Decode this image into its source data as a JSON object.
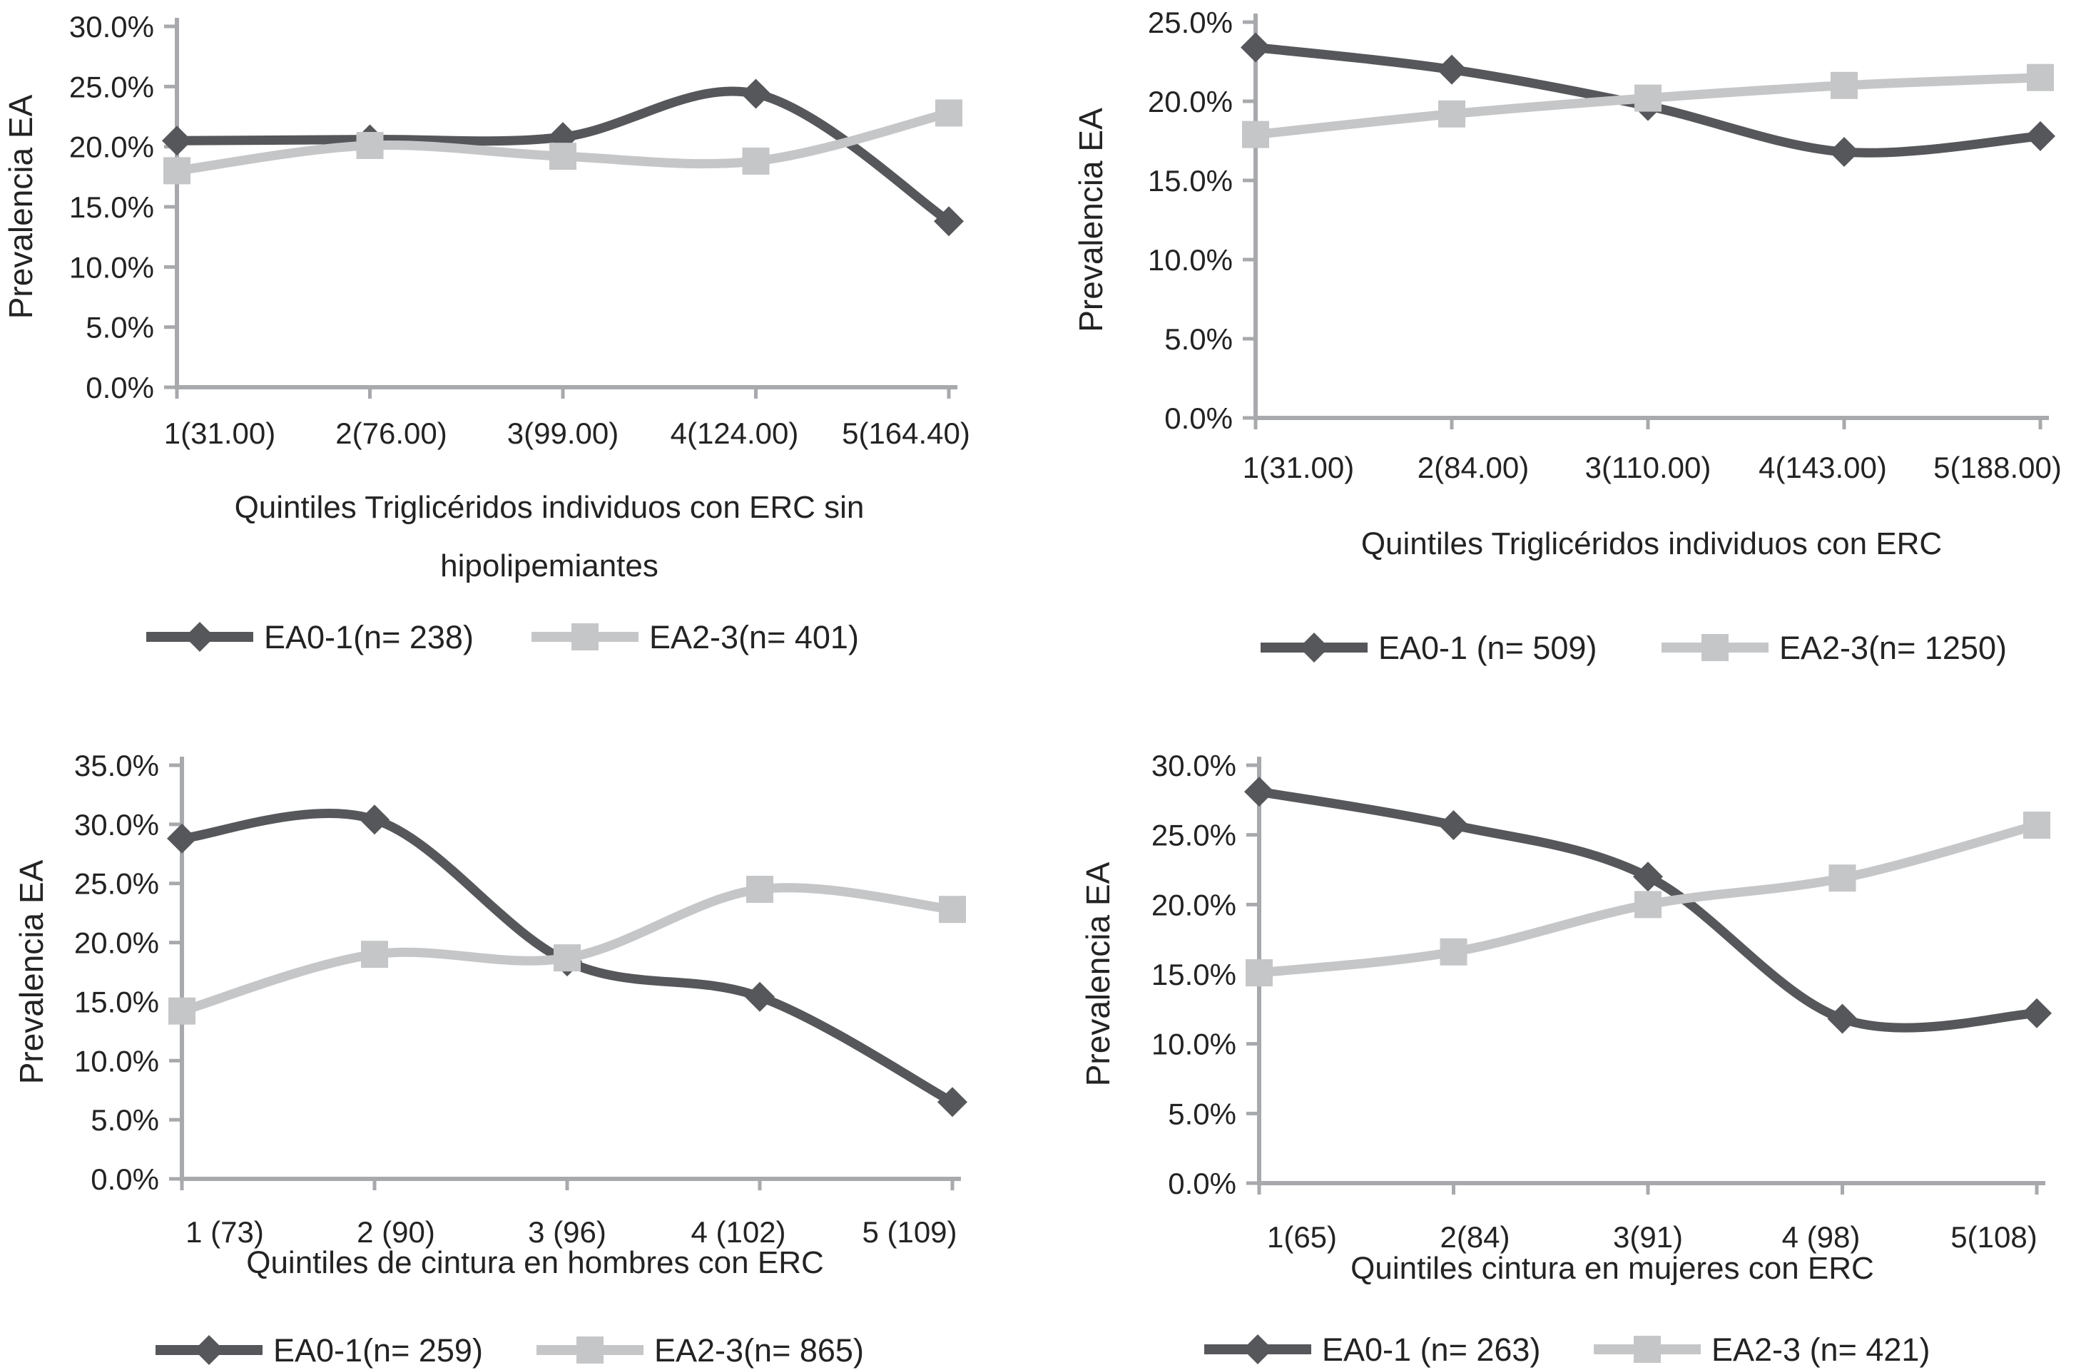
{
  "page": {
    "background": "#ffffff",
    "text_color": "#232323",
    "axis_color": "#a7a9ac",
    "series_dark_color": "#56575a",
    "series_light_color": "#c5c6c8"
  },
  "chart_data": [
    {
      "id": "top_left",
      "type": "line",
      "title": "",
      "ylabel": "Prevalencia EA",
      "xlabel_lines": [
        "Quintiles Triglicéridos individuos con ERC sin",
        "hipolipemiantes"
      ],
      "categories": [
        "1(31.00)",
        "2(76.00)",
        "3(99.00)",
        "4(124.00)",
        "5(164.40)"
      ],
      "ylim": [
        0,
        30
      ],
      "ytick_step": 5,
      "ytick_labels": [
        "0.0%",
        "5.0%",
        "10.0%",
        "15.0%",
        "20.0%",
        "25.0%",
        "30.0%"
      ],
      "grid": false,
      "smooth_lines": true,
      "legend_position": "bottom",
      "series": [
        {
          "name": "EA0-1(n= 238)",
          "marker": "diamond",
          "color": "#56575a",
          "values": [
            20.5,
            20.6,
            20.8,
            24.4,
            13.8
          ]
        },
        {
          "name": "EA2-3(n= 401)",
          "marker": "square",
          "color": "#c5c6c8",
          "values": [
            18.0,
            20.1,
            19.2,
            18.8,
            22.8
          ]
        }
      ]
    },
    {
      "id": "top_right",
      "type": "line",
      "title": "",
      "ylabel": "Prevalencia EA",
      "xlabel_lines": [
        "Quintiles Triglicéridos individuos con  ERC"
      ],
      "categories": [
        "1(31.00)",
        "2(84.00)",
        "3(110.00)",
        "4(143.00)",
        "5(188.00)"
      ],
      "ylim": [
        0,
        25
      ],
      "ytick_step": 5,
      "ytick_labels": [
        "0.0%",
        "5.0%",
        "10.0%",
        "15.0%",
        "20.0%",
        "25.0%"
      ],
      "grid": false,
      "smooth_lines": true,
      "legend_position": "bottom",
      "series": [
        {
          "name": "EA0-1 (n= 509)",
          "marker": "diamond",
          "color": "#56575a",
          "values": [
            23.4,
            22.0,
            19.7,
            16.8,
            17.8
          ]
        },
        {
          "name": "EA2-3(n= 1250)",
          "marker": "square",
          "color": "#c5c6c8",
          "values": [
            17.9,
            19.2,
            20.2,
            21.0,
            21.5
          ]
        }
      ]
    },
    {
      "id": "bottom_left",
      "type": "line",
      "title": "",
      "ylabel": "Prevalencia EA",
      "xlabel_lines": [
        "Quintiles de cintura en hombres con ERC"
      ],
      "categories": [
        "1 (73)",
        "2 (90)",
        "3 (96)",
        "4 (102)",
        "5 (109)"
      ],
      "ylim": [
        0,
        35
      ],
      "ytick_step": 5,
      "ytick_labels": [
        "0.0%",
        "5.0%",
        "10.0%",
        "15.0%",
        "20.0%",
        "25.0%",
        "30.0%",
        "35.0%"
      ],
      "grid": false,
      "smooth_lines": true,
      "legend_position": "bottom",
      "series": [
        {
          "name": "EA0-1(n= 259)",
          "marker": "diamond",
          "color": "#56575a",
          "values": [
            28.8,
            30.4,
            18.4,
            15.4,
            6.5
          ]
        },
        {
          "name": "EA2-3(n= 865)",
          "marker": "square",
          "color": "#c5c6c8",
          "values": [
            14.2,
            19.0,
            18.7,
            24.5,
            22.8
          ]
        }
      ]
    },
    {
      "id": "bottom_right",
      "type": "line",
      "title": "",
      "ylabel": "Prevalencia EA",
      "xlabel_lines": [
        "Quintiles cintura en mujeres con ERC"
      ],
      "categories": [
        "1(65)",
        "2(84)",
        "3(91)",
        "4 (98)",
        "5(108)"
      ],
      "ylim": [
        0,
        30
      ],
      "ytick_step": 5,
      "ytick_labels": [
        "0.0%",
        "5.0%",
        "10.0%",
        "15.0%",
        "20.0%",
        "25.0%",
        "30.0%"
      ],
      "grid": false,
      "smooth_lines": true,
      "legend_position": "bottom",
      "series": [
        {
          "name": "EA0-1 (n= 263)",
          "marker": "diamond",
          "color": "#56575a",
          "values": [
            28.1,
            25.7,
            22.0,
            11.8,
            12.2
          ]
        },
        {
          "name": "EA2-3 (n= 421)",
          "marker": "square",
          "color": "#c5c6c8",
          "values": [
            15.1,
            16.6,
            20.0,
            21.9,
            25.7
          ]
        }
      ]
    }
  ]
}
